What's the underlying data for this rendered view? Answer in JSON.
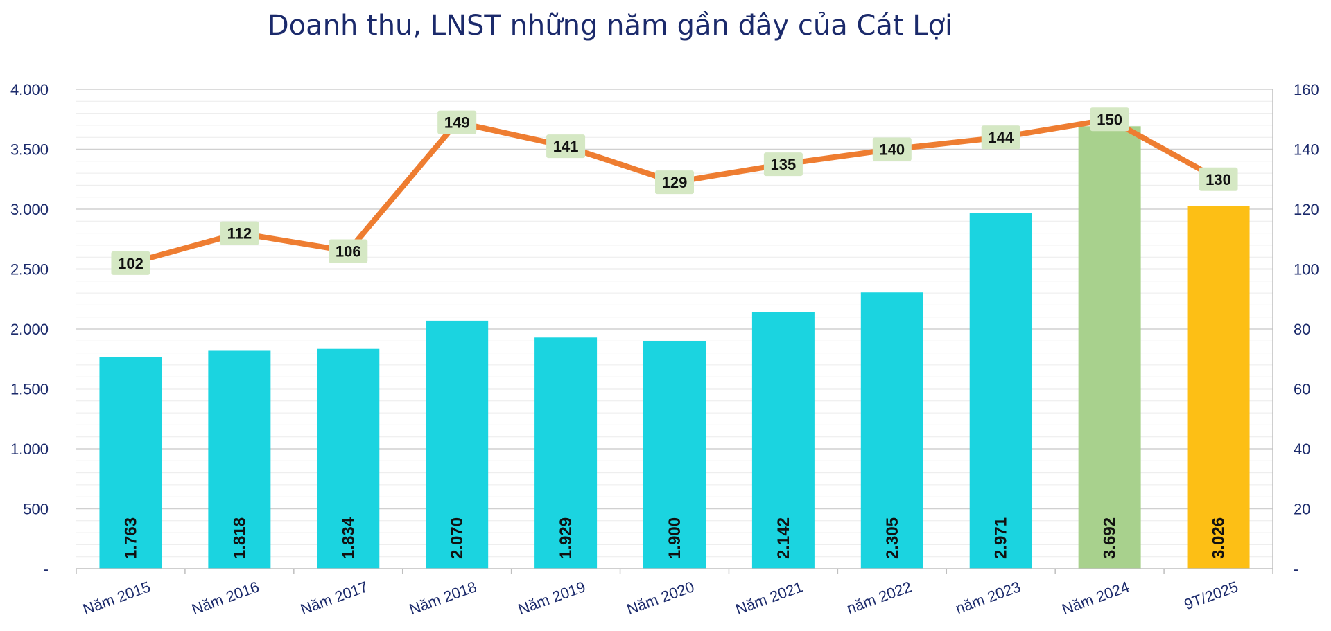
{
  "chart_data": {
    "type": "bar+line",
    "title": "Doanh thu, LNST những năm gần đây của Cát Lợi",
    "categories": [
      "Năm 2015",
      "Năm 2016",
      "Năm 2017",
      "Năm 2018",
      "Năm 2019",
      "Năm 2020",
      "Năm 2021",
      "năm 2022",
      "năm 2023",
      "Năm 2024",
      "9T/2025"
    ],
    "series": [
      {
        "name": "Doanh thu",
        "kind": "bar",
        "axis": "left",
        "values": [
          1763,
          1818,
          1834,
          2070,
          1929,
          1900,
          2142,
          2305,
          2971,
          3692,
          3026
        ],
        "labels": [
          "1.763",
          "1.818",
          "1.834",
          "2.070",
          "1.929",
          "1.900",
          "2.142",
          "2.305",
          "2.971",
          "3.692",
          "3.026"
        ],
        "colors": [
          "#1bd4e0",
          "#1bd4e0",
          "#1bd4e0",
          "#1bd4e0",
          "#1bd4e0",
          "#1bd4e0",
          "#1bd4e0",
          "#1bd4e0",
          "#1bd4e0",
          "#a8d18d",
          "#fdbf15"
        ]
      },
      {
        "name": "LNST",
        "kind": "line",
        "axis": "right",
        "color": "#ee7d31",
        "values": [
          102,
          112,
          106,
          149,
          141,
          129,
          135,
          140,
          144,
          150,
          130
        ],
        "labels": [
          "102",
          "112",
          "106",
          "149",
          "141",
          "129",
          "135",
          "140",
          "144",
          "150",
          "130"
        ]
      }
    ],
    "y_left": {
      "min": 0,
      "max": 4000,
      "ticks": [
        0,
        500,
        1000,
        1500,
        2000,
        2500,
        3000,
        3500,
        4000
      ],
      "tick_labels": [
        "-",
        "500",
        "1.000",
        "1.500",
        "2.000",
        "2.500",
        "3.000",
        "3.500",
        "4.000"
      ]
    },
    "y_right": {
      "min": 0,
      "max": 160,
      "ticks": [
        0,
        20,
        40,
        60,
        80,
        100,
        120,
        140,
        160
      ],
      "tick_labels": [
        "-",
        "20",
        "40",
        "60",
        "80",
        "100",
        "120",
        "140",
        "160"
      ]
    },
    "grid": true,
    "colors": {
      "text": "#1b2a6b",
      "label_box": "#d5e8c4",
      "grid": "#d0d0d0"
    }
  }
}
